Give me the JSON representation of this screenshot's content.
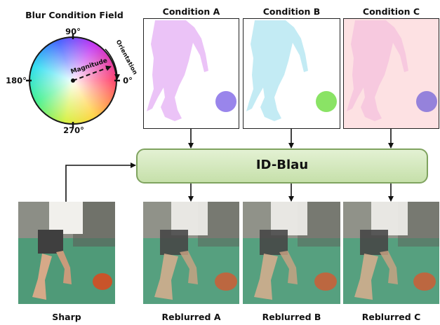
{
  "wheel": {
    "title": "Blur Condition Field",
    "deg_90": "90°",
    "deg_180": "180°",
    "deg_0": "0°",
    "deg_270": "270°",
    "magnitude": "Magnitude",
    "orientation": "Orientation"
  },
  "conditions": [
    {
      "label": "Condition A",
      "bg": "#ffffff",
      "body": "#e7b8f6",
      "blob": "#7f66e6"
    },
    {
      "label": "Condition B",
      "bg": "#ffffff",
      "body": "#b8e8f2",
      "blob": "#6ddc3e"
    },
    {
      "label": "Condition C",
      "bg": "#fde1e3",
      "body": "#f4bfdd",
      "blob": "#7a6ad8"
    }
  ],
  "model": {
    "label": "ID-Blau",
    "fill": "#cfe6b5",
    "border": "#7fa35f"
  },
  "images": [
    {
      "label": "Sharp"
    },
    {
      "label": "Reblurred A"
    },
    {
      "label": "Reblurred B"
    },
    {
      "label": "Reblurred C"
    }
  ]
}
